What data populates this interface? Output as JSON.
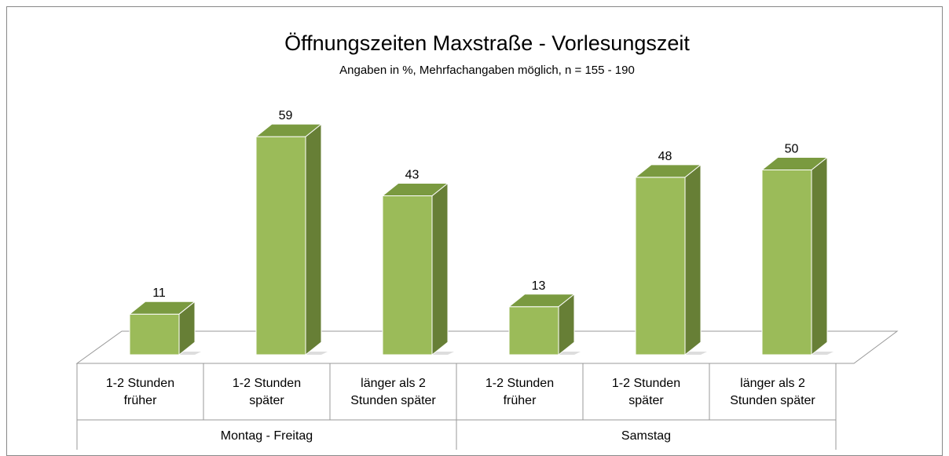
{
  "chart_data": {
    "type": "bar3d",
    "title": "Öffnungszeiten Maxstraße - Vorlesungszeit",
    "subtitle": "Angaben in %, Mehrfachangaben möglich, n = 155 - 190",
    "categories": [
      "1-2 Stunden früher",
      "1-2 Stunden später",
      "länger als 2 Stunden später",
      "1-2 Stunden früher",
      "1-2 Stunden später",
      "länger als 2 Stunden später"
    ],
    "groups": [
      {
        "name": "Montag - Freitag",
        "count": 3
      },
      {
        "name": "Samstag",
        "count": 3
      }
    ],
    "values": [
      11,
      59,
      43,
      13,
      48,
      50
    ],
    "color": "#9bbb59"
  }
}
